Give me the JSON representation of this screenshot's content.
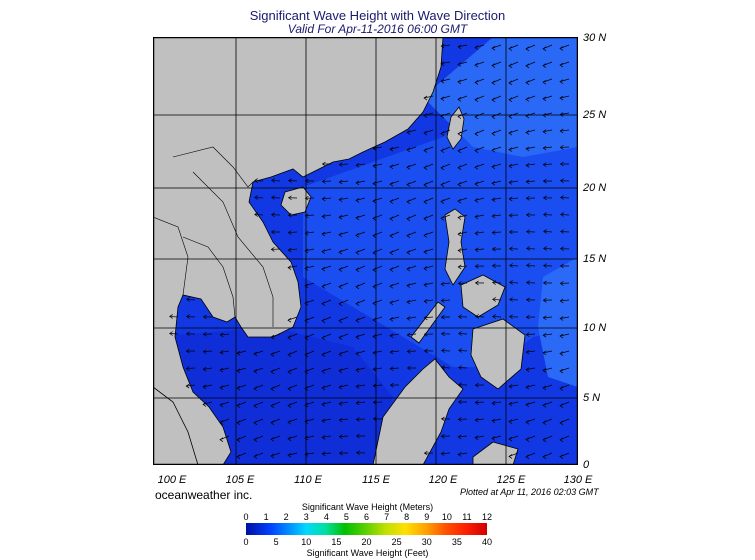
{
  "title": "Significant Wave Height with Wave Direction",
  "subtitle": "Valid For Apr-11-2016 06:00 GMT",
  "lat_labels": [
    "30 N",
    "25 N",
    "20 N",
    "15 N",
    "10 N",
    "5 N",
    "0"
  ],
  "lon_labels": [
    "100 E",
    "105 E",
    "110 E",
    "115 E",
    "120 E",
    "125 E",
    "130 E"
  ],
  "credit": "oceanweather inc.",
  "plotted": "Plotted at Apr 11, 2016 02:03 GMT",
  "colorbar": {
    "meters_title": "Significant Wave Height (Meters)",
    "meters_ticks": [
      "0",
      "1",
      "2",
      "3",
      "4",
      "5",
      "6",
      "7",
      "8",
      "9",
      "10",
      "11",
      "12"
    ],
    "feet_title": "Significant Wave Height (Feet)",
    "feet_ticks": [
      "0",
      "5",
      "10",
      "15",
      "20",
      "25",
      "30",
      "35",
      "40"
    ]
  },
  "colors": {
    "land": "#c0c0c0",
    "ocean_low": "#1030e0",
    "ocean_mid": "#1a52f0",
    "ocean_high": "#2a6cf6",
    "title": "#1a1a6e"
  }
}
